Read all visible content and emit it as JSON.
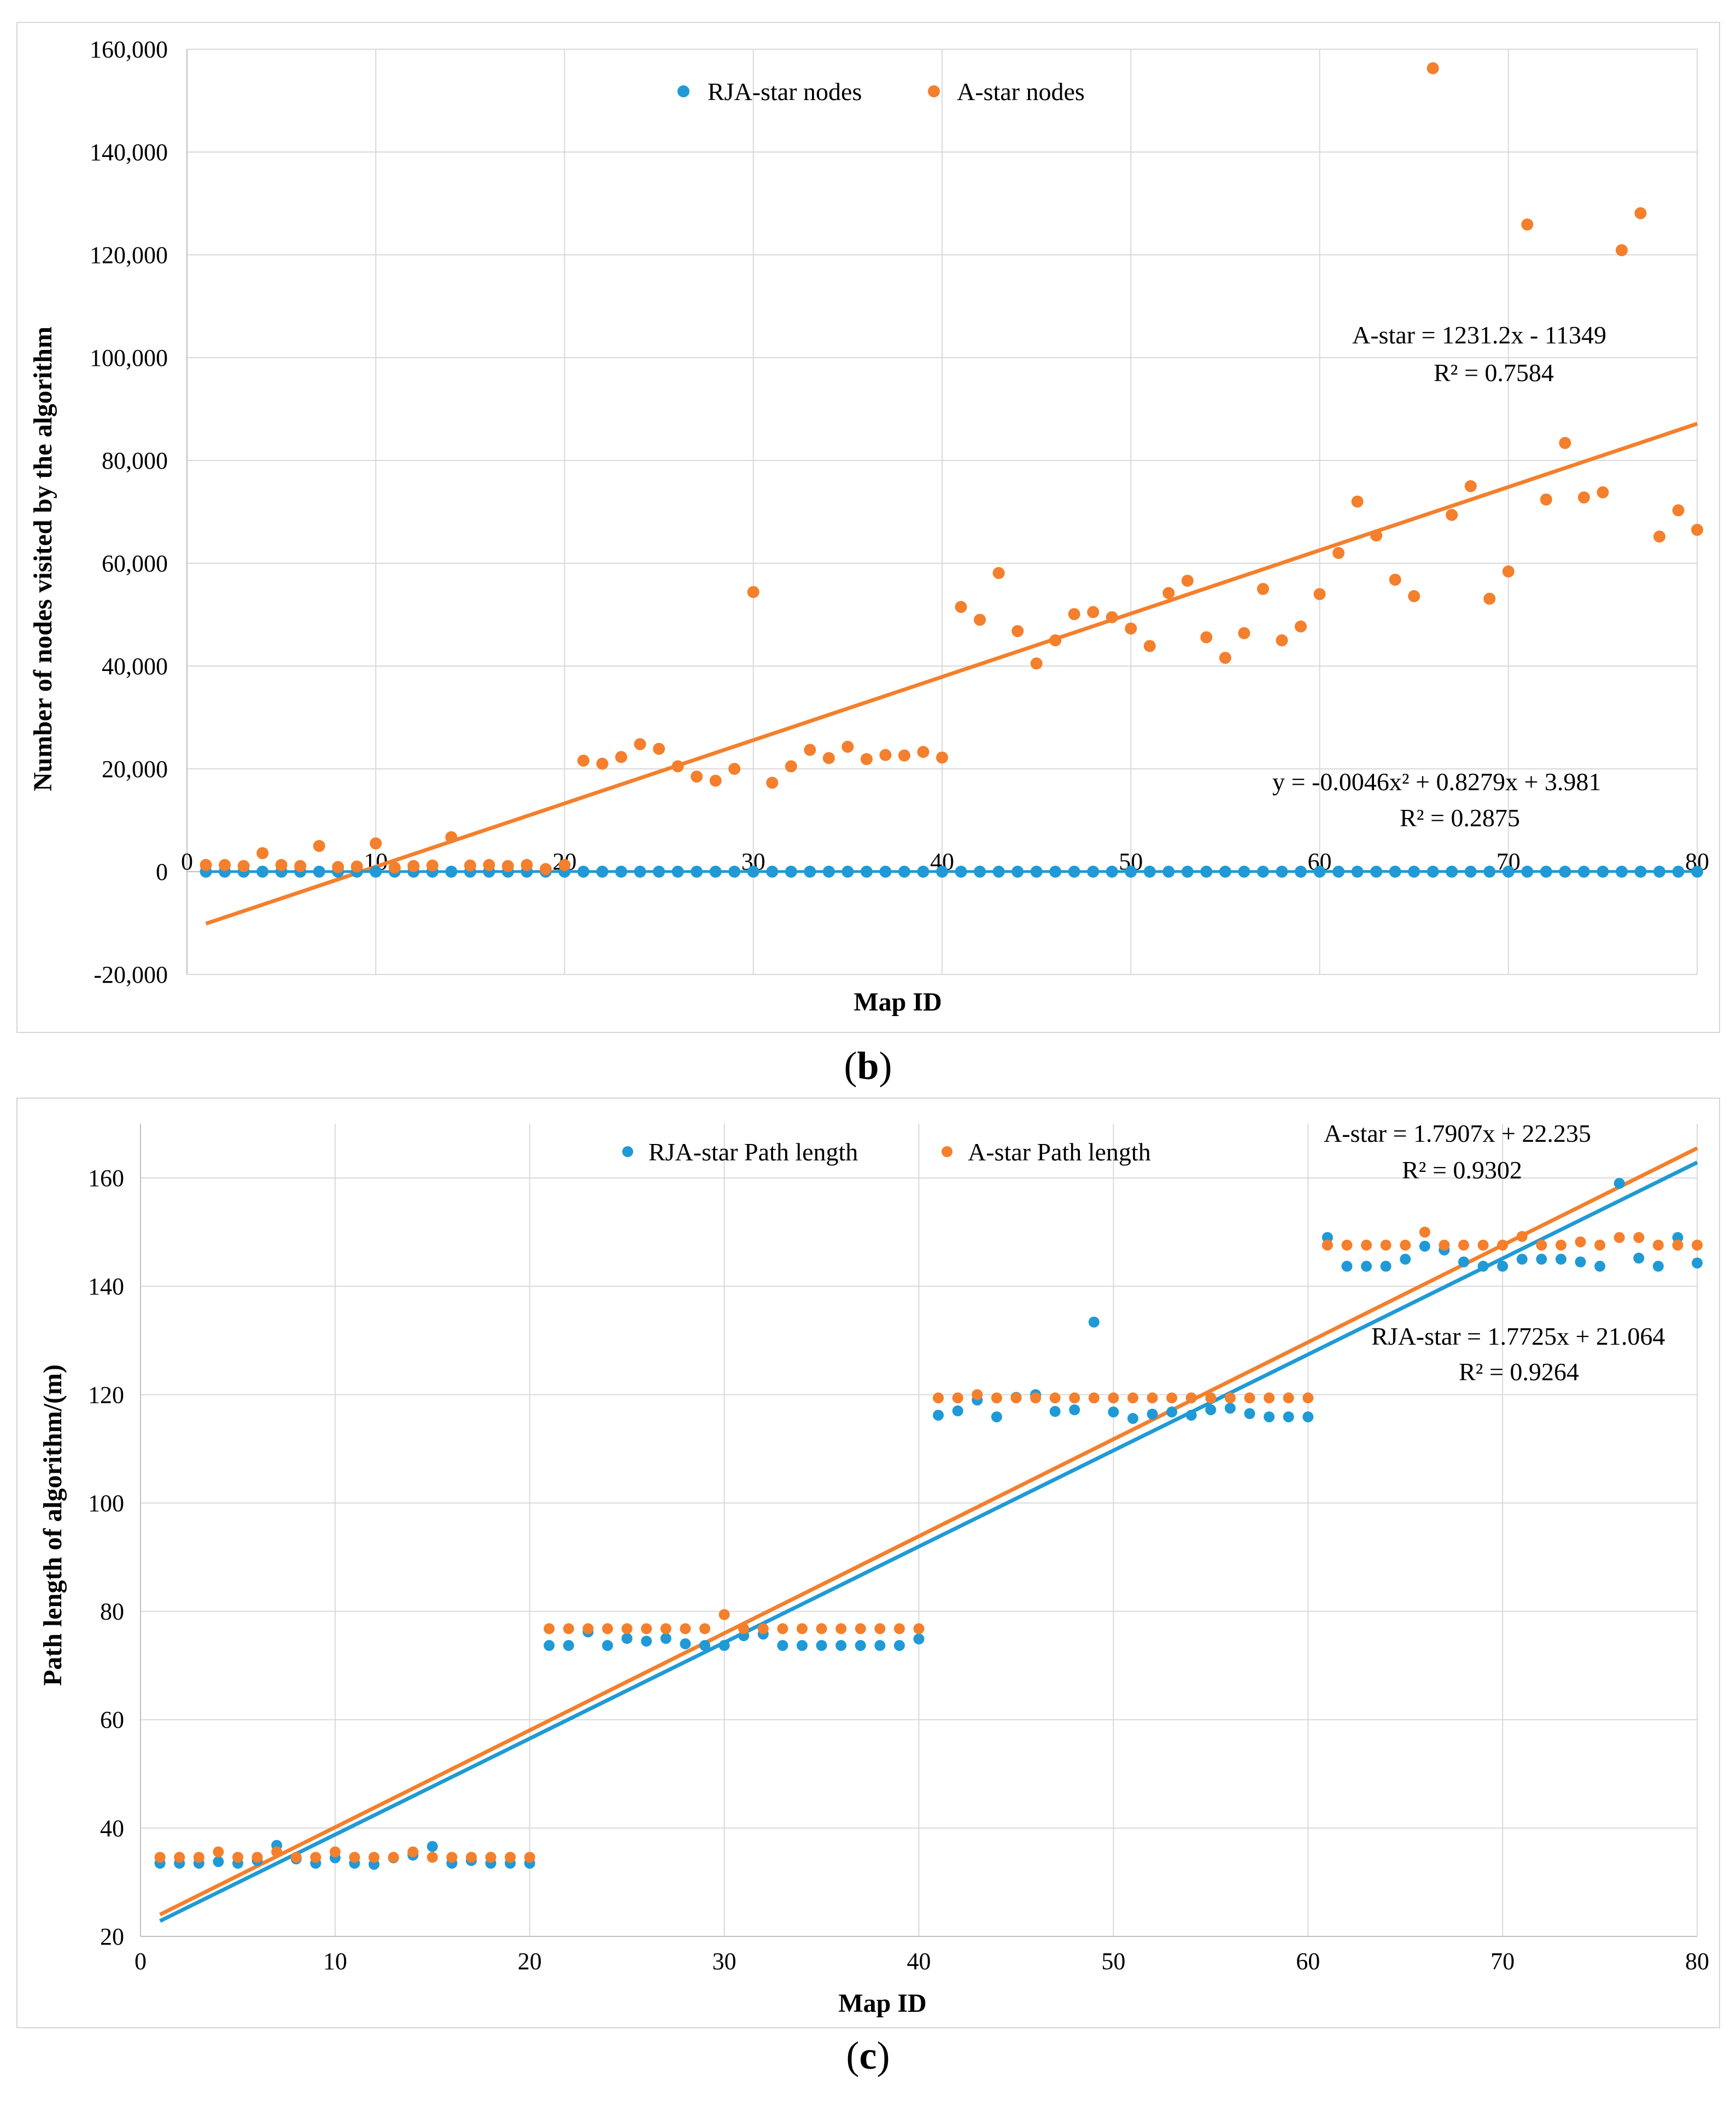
{
  "charts": [
    {
      "id": "b",
      "caption": "b",
      "colors": {
        "rja": "#1F9AD6",
        "astar": "#F47F2C",
        "grid": "#d9d9d9",
        "zero": "#bfbfbf"
      },
      "chart_data": {
        "type": "scatter",
        "title": "",
        "xlabel": "Map ID",
        "ylabel": "Number of nodes visited by the algorithm",
        "xlim": [
          0,
          80
        ],
        "ylim": [
          -20000,
          160000
        ],
        "x_ticks": [
          "0",
          "10",
          "20",
          "30",
          "40",
          "50",
          "60",
          "70",
          "80"
        ],
        "y_ticks": [
          "-20,000",
          "0",
          "20,000",
          "40,000",
          "60,000",
          "80,000",
          "100,000",
          "120,000",
          "140,000",
          "160,000"
        ],
        "y_tick_values": [
          -20000,
          0,
          20000,
          40000,
          60000,
          80000,
          100000,
          120000,
          140000,
          160000
        ],
        "x": [
          1,
          2,
          3,
          4,
          5,
          6,
          7,
          8,
          9,
          10,
          11,
          12,
          13,
          14,
          15,
          16,
          17,
          18,
          19,
          20,
          21,
          22,
          23,
          24,
          25,
          26,
          27,
          28,
          29,
          30,
          31,
          32,
          33,
          34,
          35,
          36,
          37,
          38,
          39,
          40,
          41,
          42,
          43,
          44,
          45,
          46,
          47,
          48,
          49,
          50,
          51,
          52,
          53,
          54,
          55,
          56,
          57,
          58,
          59,
          60,
          61,
          62,
          63,
          64,
          65,
          66,
          67,
          68,
          69,
          70,
          71,
          72,
          73,
          74,
          75,
          76,
          77,
          78,
          79,
          80
        ],
        "legend": [
          "RJA-star nodes",
          "A-star nodes"
        ],
        "series": [
          {
            "name": "RJA-star nodes",
            "values": [
              0,
              0,
              0,
              0,
              0,
              0,
              0,
              0,
              0,
              0,
              0,
              0,
              0,
              0,
              0,
              0,
              0,
              0,
              0,
              0,
              0,
              0,
              0,
              0,
              0,
              0,
              0,
              0,
              0,
              0,
              0,
              0,
              0,
              0,
              0,
              0,
              0,
              0,
              0,
              0,
              0,
              0,
              0,
              0,
              0,
              0,
              0,
              0,
              0,
              0,
              0,
              0,
              0,
              0,
              0,
              0,
              0,
              0,
              0,
              0,
              0,
              0,
              0,
              0,
              0,
              0,
              0,
              0,
              0,
              0,
              0,
              0,
              0,
              0,
              0,
              0,
              0,
              0,
              0,
              0
            ]
          },
          {
            "name": "A-star nodes",
            "values": [
              1300,
              1300,
              1100,
              3600,
              1300,
              1100,
              5000,
              900,
              1000,
              5500,
              800,
              1100,
              1200,
              6700,
              1200,
              1300,
              1100,
              1300,
              500,
              1300,
              21600,
              21000,
              22300,
              24800,
              23900,
              20500,
              18500,
              17700,
              20000,
              54400,
              17300,
              20500,
              23700,
              22100,
              24300,
              21900,
              22700,
              22600,
              23300,
              22200,
              51500,
              49000,
              58100,
              46800,
              40500,
              45000,
              50100,
              50500,
              49500,
              47300,
              43900,
              54200,
              56600,
              45600,
              41600,
              46400,
              55000,
              45000,
              47700,
              54000,
              62000,
              72000,
              65400,
              56800,
              53600,
              156300,
              69400,
              75000,
              53100,
              58400,
              125900,
              72400,
              83400,
              72800,
              73800,
              120900,
              128100,
              65200,
              70300,
              66500
            ]
          }
        ],
        "trendlines": [
          {
            "series": "A-star nodes",
            "kind": "linear",
            "slope": 1231.2,
            "intercept": -11349,
            "x_range": [
              1,
              80
            ],
            "label": "A-star = 1231.2x - 11349",
            "r2": "R² = 0.7584"
          },
          {
            "series": "RJA-star nodes",
            "kind": "polynomial",
            "coeffs": [
              -0.0046,
              0.8279,
              3.981
            ],
            "label": "y = -0.0046x² + 0.8279x + 3.981",
            "r2": "R² = 0.2875"
          }
        ]
      }
    },
    {
      "id": "c",
      "caption": "c",
      "colors": {
        "rja": "#1F9AD6",
        "astar": "#F47F2C",
        "grid": "#d9d9d9",
        "zero": "#bfbfbf"
      },
      "chart_data": {
        "type": "scatter",
        "title": "",
        "xlabel": "Map ID",
        "ylabel": "Path length of algorithm/(m)",
        "xlim": [
          0,
          80
        ],
        "ylim": [
          20,
          170
        ],
        "x_ticks": [
          "0",
          "10",
          "20",
          "30",
          "40",
          "50",
          "60",
          "70",
          "80"
        ],
        "y_ticks": [
          "20",
          "40",
          "60",
          "80",
          "100",
          "120",
          "140",
          "160"
        ],
        "y_tick_values": [
          20,
          40,
          60,
          80,
          100,
          120,
          140,
          160
        ],
        "x": [
          1,
          2,
          3,
          4,
          5,
          6,
          7,
          8,
          9,
          10,
          11,
          12,
          13,
          14,
          15,
          16,
          17,
          18,
          19,
          20,
          21,
          22,
          23,
          24,
          25,
          26,
          27,
          28,
          29,
          30,
          31,
          32,
          33,
          34,
          35,
          36,
          37,
          38,
          39,
          40,
          41,
          42,
          43,
          44,
          45,
          46,
          47,
          48,
          49,
          50,
          51,
          52,
          53,
          54,
          55,
          56,
          57,
          58,
          59,
          60,
          61,
          62,
          63,
          64,
          65,
          66,
          67,
          68,
          69,
          70,
          71,
          72,
          73,
          74,
          75,
          76,
          77,
          78,
          79,
          80
        ],
        "legend": [
          "RJA-star Path length",
          "A-star Path length"
        ],
        "series": [
          {
            "name": "RJA-star Path length",
            "values": [
              33.5,
              33.5,
              33.5,
              33.8,
              33.5,
              34.0,
              36.8,
              34.3,
              33.5,
              34.5,
              33.5,
              33.3,
              34.5,
              35.0,
              36.6,
              33.5,
              34.0,
              33.5,
              33.5,
              33.5,
              73.7,
              73.7,
              76.2,
              73.7,
              75.0,
              74.5,
              75.0,
              74.0,
              73.7,
              73.7,
              75.5,
              75.8,
              73.7,
              73.7,
              73.7,
              73.7,
              73.7,
              73.7,
              73.7,
              74.9,
              116.2,
              117.0,
              119.0,
              115.9,
              119.5,
              120.0,
              116.9,
              117.2,
              133.4,
              116.8,
              115.6,
              116.4,
              116.8,
              116.2,
              117.2,
              117.5,
              116.5,
              115.9,
              115.9,
              115.9,
              149.0,
              143.7,
              143.7,
              143.7,
              145.0,
              147.4,
              146.7,
              144.5,
              143.7,
              143.7,
              145.0,
              145.0,
              145.0,
              144.5,
              143.7,
              159.0,
              145.2,
              143.7,
              149.0,
              144.3
            ]
          },
          {
            "name": "A-star Path length",
            "values": [
              34.6,
              34.6,
              34.6,
              35.6,
              34.6,
              34.6,
              35.6,
              34.6,
              34.6,
              35.6,
              34.6,
              34.6,
              34.6,
              35.6,
              34.6,
              34.6,
              34.6,
              34.6,
              34.6,
              34.6,
              76.8,
              76.8,
              76.8,
              76.8,
              76.8,
              76.8,
              76.8,
              76.8,
              76.8,
              79.4,
              76.8,
              76.8,
              76.8,
              76.8,
              76.8,
              76.8,
              76.8,
              76.8,
              76.8,
              76.8,
              119.4,
              119.4,
              120.0,
              119.4,
              119.4,
              119.4,
              119.4,
              119.4,
              119.4,
              119.4,
              119.4,
              119.4,
              119.4,
              119.4,
              119.4,
              119.4,
              119.4,
              119.4,
              119.4,
              119.4,
              147.6,
              147.6,
              147.6,
              147.6,
              147.6,
              150.0,
              147.6,
              147.6,
              147.6,
              147.6,
              149.2,
              147.6,
              147.6,
              148.2,
              147.6,
              149.0,
              149.0,
              147.6,
              147.6,
              147.6
            ]
          }
        ],
        "trendlines": [
          {
            "series": "A-star Path length",
            "kind": "linear",
            "slope": 1.7907,
            "intercept": 22.235,
            "x_range": [
              1,
              80
            ],
            "label": "A-star = 1.7907x + 22.235",
            "r2": "R² = 0.9302"
          },
          {
            "series": "RJA-star Path length",
            "kind": "linear",
            "slope": 1.7725,
            "intercept": 21.064,
            "x_range": [
              1,
              80
            ],
            "label": "RJA-star = 1.7725x + 21.064",
            "r2": "R² = 0.9264"
          }
        ]
      }
    }
  ]
}
